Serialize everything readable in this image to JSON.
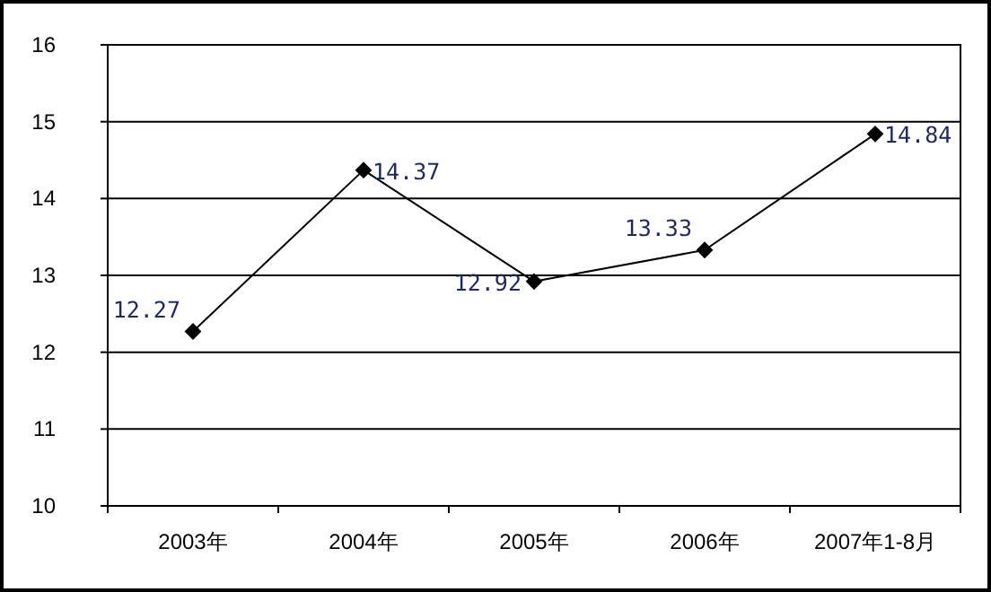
{
  "chart_data": {
    "type": "line",
    "categories": [
      "2003年",
      "2004年",
      "2005年",
      "2006年",
      "2007年1-8月"
    ],
    "values": [
      12.27,
      14.37,
      12.92,
      13.33,
      14.84
    ],
    "color": "#000000",
    "ylim": [
      10,
      16
    ],
    "yticks": [
      10,
      11,
      12,
      13,
      14,
      15,
      16
    ],
    "grid": "y",
    "marker": "diamond",
    "data_labels": true
  }
}
